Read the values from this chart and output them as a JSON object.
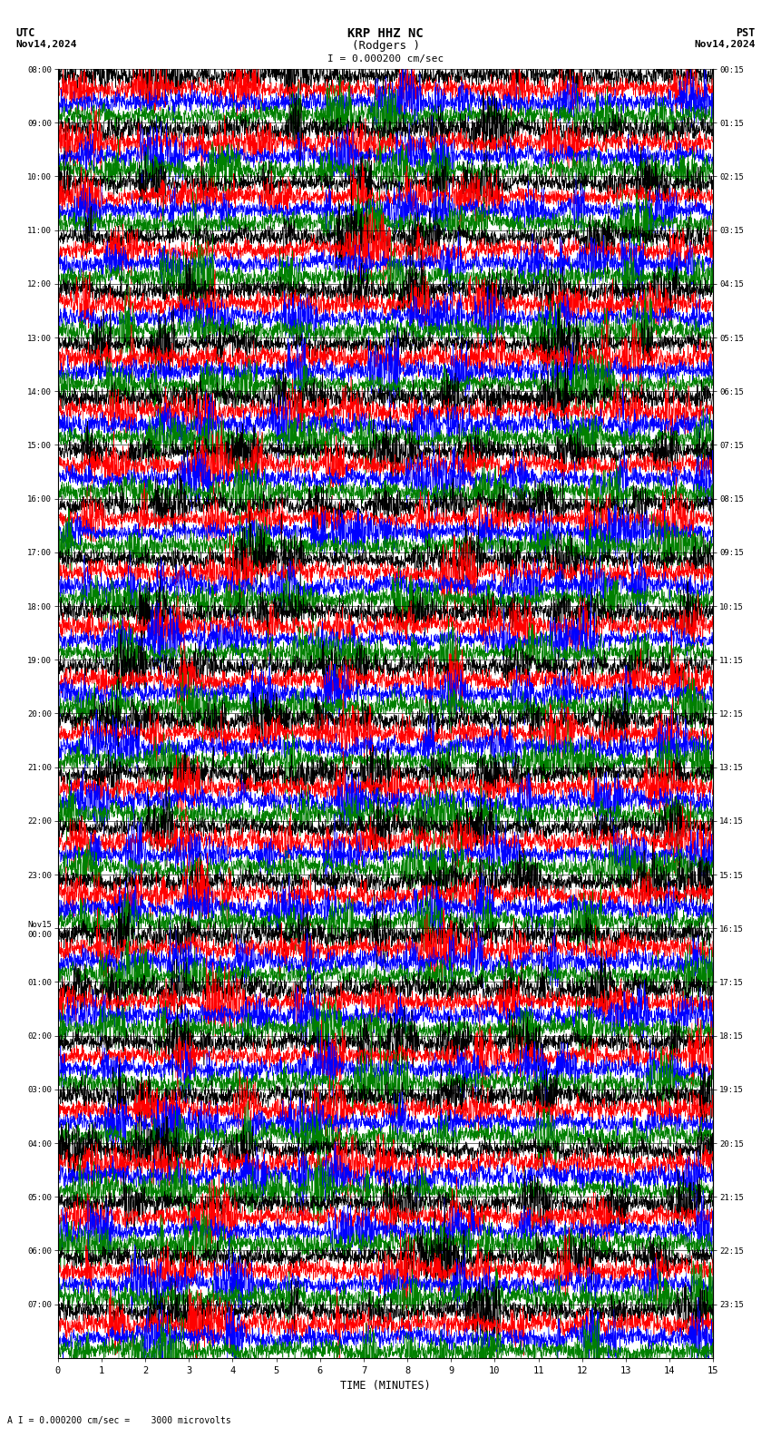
{
  "title_line1": "KRP HHZ NC",
  "title_line2": "(Rodgers )",
  "title_scale": "I = 0.000200 cm/sec",
  "label_utc": "UTC",
  "label_pst": "PST",
  "label_date_left": "Nov14,2024",
  "label_date_right": "Nov14,2024",
  "bottom_label": "TIME (MINUTES)",
  "bottom_note": "A I = 0.000200 cm/sec =    3000 microvolts",
  "utc_times": [
    "08:00",
    "09:00",
    "10:00",
    "11:00",
    "12:00",
    "13:00",
    "14:00",
    "15:00",
    "16:00",
    "17:00",
    "18:00",
    "19:00",
    "20:00",
    "21:00",
    "22:00",
    "23:00",
    "Nov15\n00:00",
    "01:00",
    "02:00",
    "03:00",
    "04:00",
    "05:00",
    "06:00",
    "07:00"
  ],
  "pst_times": [
    "00:15",
    "01:15",
    "02:15",
    "03:15",
    "04:15",
    "05:15",
    "06:15",
    "07:15",
    "08:15",
    "09:15",
    "10:15",
    "11:15",
    "12:15",
    "13:15",
    "14:15",
    "15:15",
    "16:15",
    "17:15",
    "18:15",
    "19:15",
    "20:15",
    "21:15",
    "22:15",
    "23:15"
  ],
  "n_rows": 24,
  "minutes_per_row": 15,
  "sub_colors": [
    "black",
    "red",
    "blue",
    "green"
  ],
  "bg_color": "white",
  "fig_width": 8.5,
  "fig_height": 15.84,
  "dpi": 100
}
